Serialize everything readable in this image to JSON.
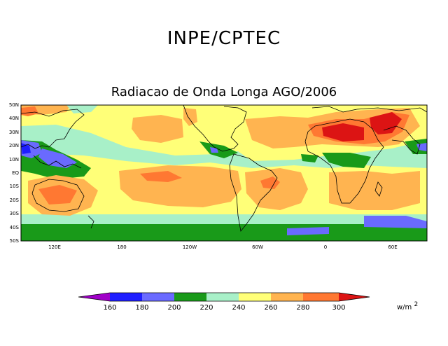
{
  "header": {
    "org_title": "INPE/CPTEC"
  },
  "map": {
    "title": "Radiacao de Onda Longa AGO/2006",
    "lat_labels": [
      "50N",
      "40N",
      "30N",
      "20N",
      "10N",
      "EQ",
      "10S",
      "20S",
      "30S",
      "40S",
      "50S"
    ],
    "lon_labels": [
      "120E",
      "180",
      "120W",
      "60W",
      "0",
      "60E"
    ]
  },
  "legend": {
    "levels": [
      "160",
      "180",
      "200",
      "220",
      "240",
      "260",
      "280",
      "300"
    ],
    "units": "w/m",
    "units_exp": "2",
    "colors": {
      "lt160": "#a000c8",
      "c160_180": "#1e1eff",
      "c180_200": "#6a6aff",
      "c200_220": "#199a19",
      "c220_240": "#a8f0c8",
      "c240_260": "#ffff78",
      "c260_280": "#ffb450",
      "c280_300": "#ff7832",
      "gt300": "#dc1414"
    }
  }
}
